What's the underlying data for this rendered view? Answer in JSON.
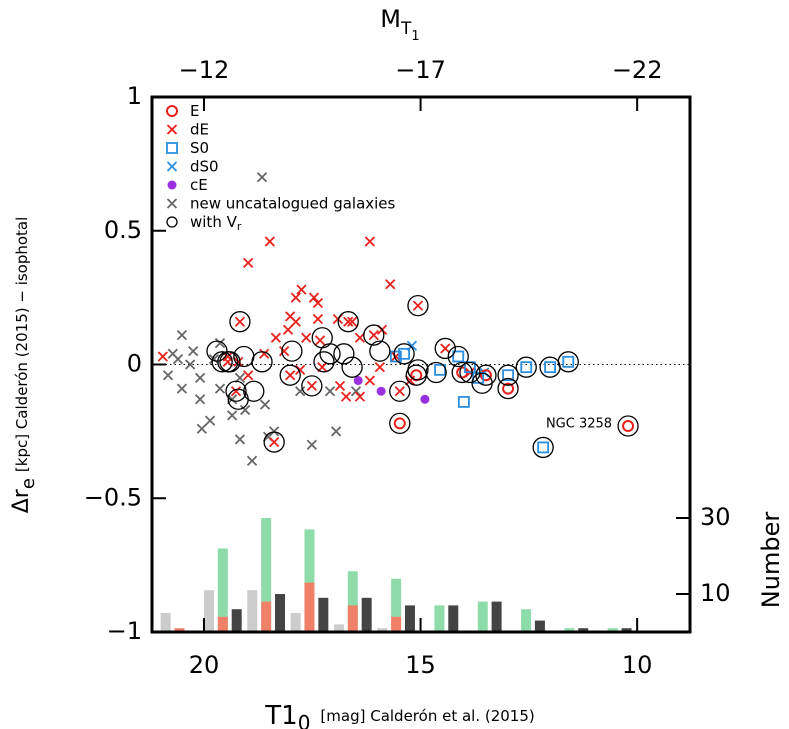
{
  "chart_data": {
    "type": "scatter",
    "xlabel": {
      "main": "T1",
      "sub": "0",
      "rest": "[mag] Calderón et al. (2015)"
    },
    "ylabel": {
      "main": "Δr",
      "sub": "e",
      "rest": "[kpc] Calderón (2015) − isophotal"
    },
    "x2label": {
      "main": "M",
      "sub": "T",
      "subsub": "1"
    },
    "y2label": "Number",
    "xlim": [
      21.2,
      8.78
    ],
    "xticks": [
      20,
      15,
      10
    ],
    "ylim": [
      -1,
      1
    ],
    "yticks": [
      {
        "value": -1,
        "label": "−1"
      },
      {
        "value": -0.5,
        "label": "−0.5"
      },
      0,
      0.5,
      1
    ],
    "x2lim": [
      -10.8,
      -23.22
    ],
    "x2ticks": [
      {
        "value": -12,
        "label": "−12"
      },
      {
        "value": -17,
        "label": "−17"
      },
      {
        "value": -22,
        "label": "−22"
      }
    ],
    "y2lim": [
      0,
      140.8
    ],
    "y2ticks": [
      10,
      30
    ],
    "reference_line": 0,
    "annotations": [
      {
        "text": "NGC 3258",
        "x": 10.21,
        "y": -0.23
      }
    ],
    "series": [
      {
        "name": "E",
        "marker": "circle",
        "color": "#e8211c",
        "x": [
          15.48,
          15.1,
          13.49,
          12.98,
          10.21,
          14.04
        ],
        "y": [
          -0.22,
          -0.04,
          -0.04,
          -0.09,
          -0.23,
          -0.03
        ]
      },
      {
        "name": "dE",
        "marker": "x",
        "color": "#e8211c",
        "x": [
          20.95,
          18.98,
          18.48,
          16.17,
          15.7,
          17.88,
          17.75,
          17.46,
          17.37,
          18.01,
          17.88,
          17.37,
          16.91,
          18.34,
          18.06,
          17.64,
          18.15,
          17.32,
          16.58,
          16.4,
          15.89,
          18.61,
          19.21,
          19.45,
          18.98,
          17.78,
          17.27,
          16.86,
          16.72,
          15.94,
          16.17,
          15.57,
          15.24,
          16.4,
          19.17,
          19.26,
          18.38,
          16.67,
          15.06,
          15.48,
          14.43,
          17.51,
          18.01,
          16.08,
          13.86,
          19.45
        ],
        "y": [
          0.03,
          0.38,
          0.46,
          0.46,
          0.3,
          0.25,
          0.28,
          0.25,
          0.23,
          0.18,
          0.16,
          0.17,
          0.17,
          0.1,
          0.13,
          0.1,
          0.05,
          0.09,
          0.16,
          0.1,
          0.13,
          0.04,
          0.01,
          0.03,
          -0.04,
          -0.02,
          -0.01,
          -0.08,
          -0.12,
          -0.01,
          -0.06,
          0.03,
          -0.06,
          -0.12,
          0.16,
          -0.1,
          -0.29,
          0.16,
          0.22,
          -0.1,
          0.06,
          -0.08,
          -0.04,
          0.11,
          -0.03,
          0.01
        ]
      },
      {
        "name": "S0",
        "marker": "square",
        "color": "#2a8fe0",
        "x": [
          15.57,
          15.38,
          14.55,
          14.0,
          14.13,
          13.67,
          12.98,
          12.56,
          12.01,
          11.59,
          12.17,
          13.86
        ],
        "y": [
          0.03,
          0.04,
          -0.02,
          -0.14,
          0.03,
          -0.05,
          -0.04,
          -0.01,
          -0.01,
          0.01,
          -0.31,
          -0.01
        ]
      },
      {
        "name": "dS0",
        "marker": "x",
        "color": "#2a8fe0",
        "x": [
          15.2,
          13.53
        ],
        "y": [
          0.07,
          -0.03
        ]
      },
      {
        "name": "cE",
        "marker": "dot",
        "color": "#9b30e0",
        "x": [
          16.44,
          15.91,
          14.9
        ],
        "y": [
          -0.06,
          -0.1,
          -0.13
        ]
      },
      {
        "name": "new uncatalogued galaxies",
        "marker": "x",
        "color": "#666666",
        "x": [
          20.72,
          20.51,
          20.83,
          20.6,
          20.51,
          20.09,
          20.25,
          19.77,
          19.63,
          20.05,
          19.86,
          19.35,
          19.17,
          19.05,
          19.35,
          19.63,
          18.59,
          18.66,
          18.38,
          18.52,
          18.89,
          19.17,
          17.51,
          16.95,
          17.09,
          17.78,
          20.09,
          20.32,
          16.49
        ],
        "y": [
          0.04,
          0.11,
          -0.04,
          0.02,
          -0.09,
          -0.05,
          0.05,
          0.02,
          0.08,
          -0.24,
          -0.21,
          -0.13,
          -0.05,
          -0.17,
          -0.19,
          -0.09,
          -0.15,
          0.7,
          -0.25,
          -0.27,
          -0.36,
          -0.28,
          -0.3,
          -0.25,
          -0.1,
          -0.1,
          -0.13,
          0.0,
          -0.1
        ]
      },
      {
        "name": "with V",
        "name_sub": "r",
        "marker": "ring",
        "color": "#000000",
        "x": [
          19.17,
          19.26,
          18.38,
          16.67,
          15.06,
          15.48,
          14.43,
          17.51,
          18.01,
          16.08,
          13.86,
          19.45,
          15.48,
          15.1,
          13.49,
          12.98,
          10.21,
          14.04,
          15.38,
          14.13,
          12.98,
          12.56,
          12.01,
          11.59,
          12.17,
          19.7,
          19.58,
          19.4,
          19.08,
          18.66,
          17.97,
          17.27,
          17.09,
          16.77,
          17.23,
          16.58,
          15.94,
          15.06,
          14.64,
          13.58,
          18.85,
          19.21
        ],
        "y": [
          0.16,
          -0.1,
          -0.29,
          0.16,
          0.22,
          -0.1,
          0.06,
          -0.08,
          -0.04,
          0.11,
          -0.03,
          0.01,
          -0.22,
          -0.04,
          -0.04,
          -0.09,
          -0.23,
          -0.03,
          0.04,
          0.03,
          -0.04,
          -0.01,
          -0.01,
          0.01,
          -0.31,
          0.05,
          0.01,
          0.01,
          0.03,
          0.01,
          0.05,
          0.1,
          0.04,
          0.04,
          0.01,
          -0.01,
          0.05,
          -0.02,
          -0.03,
          -0.07,
          -0.1,
          -0.13
        ]
      }
    ],
    "histogram": {
      "bins": [
        21.1,
        20.1,
        19.1,
        18.1,
        17.1,
        16.1,
        15.1,
        14.1,
        13.1,
        12.1,
        11.1,
        10.1
      ],
      "series": [
        {
          "color": "#cccccc",
          "values": [
            5,
            11,
            11,
            5,
            2,
            1,
            0,
            0,
            0,
            0,
            0
          ]
        },
        {
          "color": "#8edcaa",
          "values": [
            0,
            22,
            30,
            27,
            16,
            14,
            7,
            8,
            6,
            1,
            1
          ]
        },
        {
          "color": "#f08068",
          "values": [
            1,
            4,
            8,
            13,
            7,
            4,
            0,
            0,
            0,
            0,
            0
          ]
        },
        {
          "color": "#444444",
          "values": [
            0,
            6,
            10,
            9,
            9,
            7,
            7,
            8,
            3,
            1,
            1
          ]
        }
      ]
    }
  }
}
